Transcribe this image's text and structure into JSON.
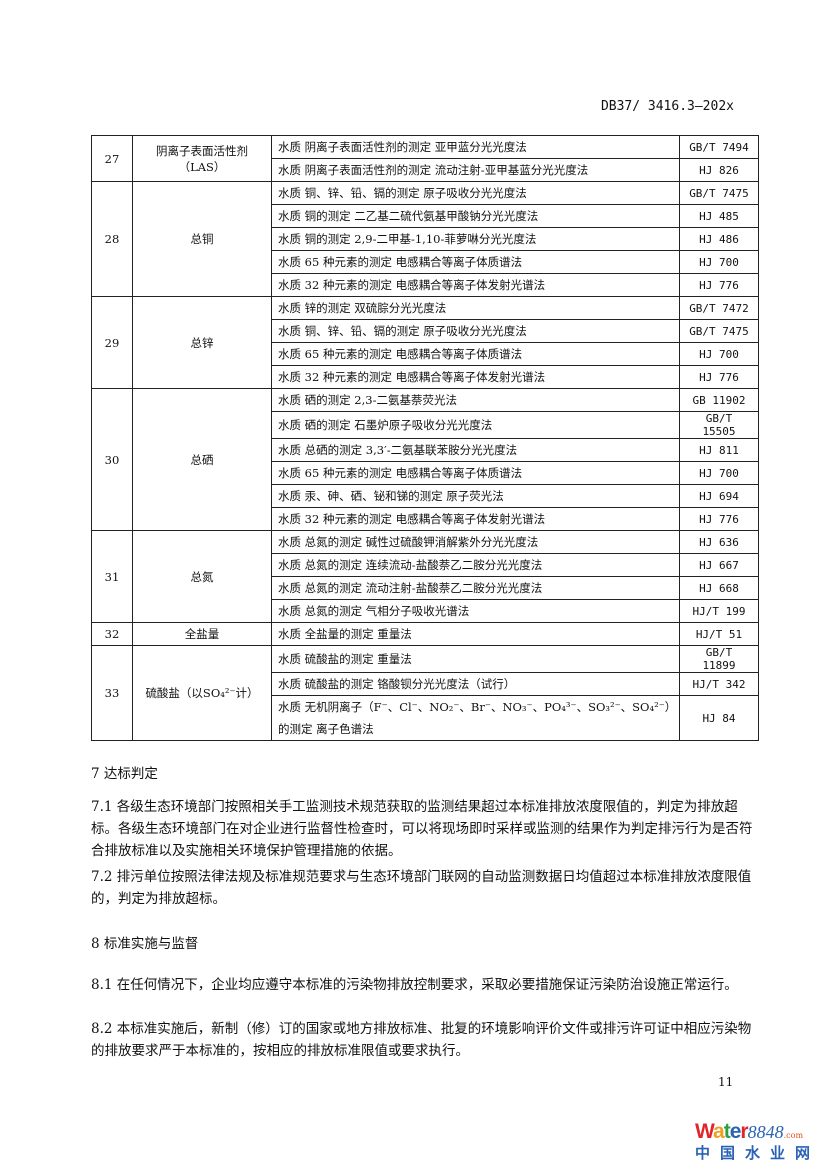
{
  "header": {
    "doc_code": "DB37/ 3416.3—202x"
  },
  "table": {
    "groups": [
      {
        "no": "27",
        "name": "阴离子表面活性剂（LAS）",
        "rows": [
          {
            "method": "水质 阴离子表面活性剂的测定 亚甲蓝分光光度法",
            "std": "GB/T 7494"
          },
          {
            "method": "水质 阴离子表面活性剂的测定 流动注射-亚甲基蓝分光光度法",
            "std": "HJ 826"
          }
        ]
      },
      {
        "no": "28",
        "name": "总铜",
        "rows": [
          {
            "method": "水质 铜、锌、铅、镉的测定 原子吸收分光光度法",
            "std": "GB/T 7475"
          },
          {
            "method": "水质 铜的测定 二乙基二硫代氨基甲酸钠分光光度法",
            "std": "HJ 485"
          },
          {
            "method": "水质 铜的测定 2,9-二甲基-1,10-菲萝啉分光光度法",
            "std": "HJ 486"
          },
          {
            "method": "水质 65 种元素的测定 电感耦合等离子体质谱法",
            "std": "HJ 700"
          },
          {
            "method": "水质 32 种元素的测定 电感耦合等离子体发射光谱法",
            "std": "HJ 776"
          }
        ]
      },
      {
        "no": "29",
        "name": "总锌",
        "rows": [
          {
            "method": "水质 锌的测定 双硫腙分光光度法",
            "std": "GB/T 7472"
          },
          {
            "method": "水质 铜、锌、铅、镉的测定 原子吸收分光光度法",
            "std": "GB/T 7475"
          },
          {
            "method": "水质 65 种元素的测定 电感耦合等离子体质谱法",
            "std": "HJ 700"
          },
          {
            "method": "水质 32 种元素的测定 电感耦合等离子体发射光谱法",
            "std": "HJ 776"
          }
        ]
      },
      {
        "no": "30",
        "name": "总硒",
        "rows": [
          {
            "method": "水质 硒的测定 2,3-二氨基萘荧光法",
            "std": "GB 11902"
          },
          {
            "method": "水质 硒的测定 石墨炉原子吸收分光光度法",
            "std": "GB/T 15505"
          },
          {
            "method": "水质 总硒的测定 3,3′-二氨基联苯胺分光光度法",
            "std": "HJ 811"
          },
          {
            "method": "水质 65 种元素的测定 电感耦合等离子体质谱法",
            "std": "HJ 700"
          },
          {
            "method": "水质 汞、砷、硒、铋和锑的测定 原子荧光法",
            "std": "HJ 694"
          },
          {
            "method": "水质 32 种元素的测定 电感耦合等离子体发射光谱法",
            "std": "HJ 776"
          }
        ]
      },
      {
        "no": "31",
        "name": "总氮",
        "rows": [
          {
            "method": "水质 总氮的测定 碱性过硫酸钾消解紫外分光光度法",
            "std": "HJ 636"
          },
          {
            "method": "水质 总氮的测定 连续流动-盐酸萘乙二胺分光光度法",
            "std": "HJ 667"
          },
          {
            "method": "水质 总氮的测定 流动注射-盐酸萘乙二胺分光光度法",
            "std": "HJ 668"
          },
          {
            "method": "水质 总氮的测定 气相分子吸收光谱法",
            "std": "HJ/T 199"
          }
        ]
      },
      {
        "no": "32",
        "name": "全盐量",
        "rows": [
          {
            "method": "水质 全盐量的测定 重量法",
            "std": "HJ/T 51"
          }
        ]
      },
      {
        "no": "33",
        "name": "硫酸盐（以SO₄²⁻计）",
        "rows": [
          {
            "method": "水质 硫酸盐的测定 重量法",
            "std": "GB/T 11899"
          },
          {
            "method": "水质 硫酸盐的测定 铬酸钡分光光度法（试行）",
            "std": "HJ/T 342"
          },
          {
            "method": "水质 无机阴离子（F⁻、Cl⁻、NO₂⁻、Br⁻、NO₃⁻、PO₄³⁻、SO₃²⁻、SO₄²⁻）的测定 离子色谱法",
            "std": "HJ 84"
          }
        ]
      }
    ]
  },
  "sections": [
    {
      "title": "7  达标判定",
      "paras": [
        "7.1  各级生态环境部门按照相关手工监测技术规范获取的监测结果超过本标准排放浓度限值的，判定为排放超标。各级生态环境部门在对企业进行监督性检查时，可以将现场即时采样或监测的结果作为判定排污行为是否符合排放标准以及实施相关环境保护管理措施的依据。",
        "7.2  排污单位按照法律法规及标准规范要求与生态环境部门联网的自动监测数据日均值超过本标准排放浓度限值的，判定为排放超标。"
      ]
    },
    {
      "title": "8  标准实施与监督",
      "paras": [
        "8.1  在任何情况下，企业均应遵守本标准的污染物排放控制要求，采取必要措施保证污染防治设施正常运行。",
        "8.2  本标准实施后，新制（修）订的国家或地方排放标准、批复的环境影响评价文件或排污许可证中相应污染物的排放要求严于本标准的，按相应的排放标准限值或要求执行。"
      ]
    }
  ],
  "footer": {
    "page_number": "11"
  },
  "watermark": {
    "brand": "Water",
    "brand_num": "8848",
    "brand_tld": ".com",
    "brand_cn": "中国水业网",
    "colors": {
      "W": "#e0252b",
      "a": "#f0a020",
      "t": "#2aa040",
      "e": "#2b63b4",
      "r": "#e0252b",
      "blue": "#2b63b4"
    }
  }
}
